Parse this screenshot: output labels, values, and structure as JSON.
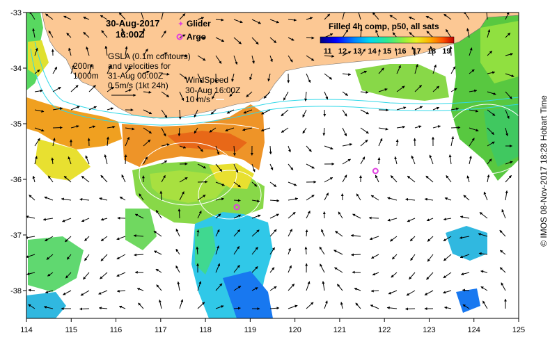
{
  "header": {
    "date": "30-Aug-2017",
    "time": "16:00Z",
    "glider_label": "Glider",
    "argo_label": "Argo"
  },
  "gsla": {
    "line1": "GSLA (0.1m contours)",
    "line2": "and velocities for",
    "line3": "31-Aug 00:00Z",
    "line4": "0.5m/s (1kt 24h)"
  },
  "bathy": {
    "contour1": "200m",
    "contour2": "1000m"
  },
  "wind": {
    "title": "WindSpeed",
    "time": "30-Aug 16:00Z",
    "scale": "10 m/s"
  },
  "colorbar": {
    "title": "Filled 4h comp, p50, all sats",
    "ticks": [
      "11",
      "12",
      "13",
      "14",
      "15",
      "16",
      "17",
      "18",
      "19"
    ],
    "range": [
      10.5,
      19.5
    ],
    "stops": [
      "#00007f",
      "#0000ff",
      "#0080ff",
      "#00d8f0",
      "#30e890",
      "#90f040",
      "#e8f020",
      "#ffb000",
      "#ff5000",
      "#c00000"
    ]
  },
  "axes": {
    "lon_ticks": [
      "114",
      "115",
      "116",
      "117",
      "118",
      "119",
      "120",
      "121",
      "122",
      "123",
      "124",
      "125"
    ],
    "lat_ticks": [
      "-33",
      "-34",
      "-35",
      "-36",
      "-37",
      "-38"
    ],
    "lon_range": [
      114,
      125
    ],
    "lat_range": [
      -33,
      -38.5
    ]
  },
  "credit": "© IMOS 08-Nov-2017 18:28 Hobart Time",
  "colors": {
    "land": "#fcc894",
    "shelf_line": "#30d8e8",
    "argo": "#e040e0"
  },
  "floats": [
    {
      "name": "argo",
      "lon": 121.8,
      "lat": -35.85
    },
    {
      "name": "argo",
      "lon": 118.7,
      "lat": -36.5
    }
  ]
}
